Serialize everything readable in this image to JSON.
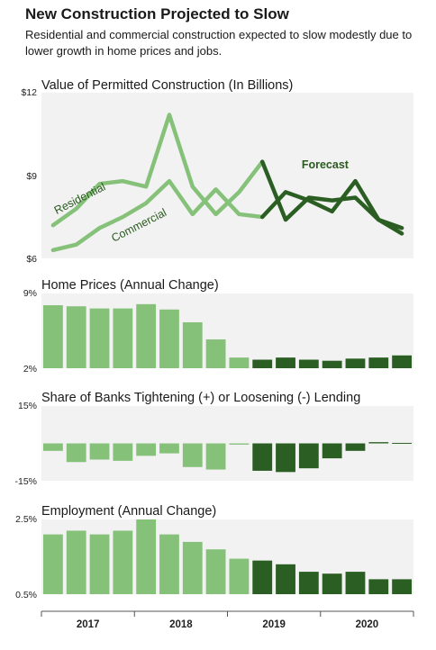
{
  "header": {
    "title": "New Construction Projected to Slow",
    "subtitle": "Residential and commercial construction expected to slow modestly due to lower growth in home prices and jobs."
  },
  "colors": {
    "historical": "#86c17a",
    "forecast": "#2b5e22",
    "panel_bg": "#f2f2f2",
    "axis": "#555555"
  },
  "x_axis": {
    "periods_per_year": 4,
    "years": [
      "2017",
      "2018",
      "2019",
      "2020"
    ],
    "forecast_start_index": 9
  },
  "chart_data": [
    {
      "id": "construction",
      "type": "line",
      "title": "Value of Permitted Construction (In Billions)",
      "ylim": [
        6,
        12
      ],
      "ytick_labels": [
        "$12",
        "$9",
        "$6"
      ],
      "ytick_values": [
        12,
        9,
        6
      ],
      "annotation": "Forecast",
      "series": [
        {
          "name": "Residential",
          "values": [
            7.2,
            7.8,
            8.7,
            8.8,
            8.6,
            11.2,
            8.6,
            7.6,
            8.4,
            9.5,
            7.4,
            8.2,
            8.1,
            8.2,
            7.4,
            7.1
          ]
        },
        {
          "name": "Commercial",
          "values": [
            6.3,
            6.5,
            7.1,
            7.5,
            8.0,
            8.8,
            7.6,
            8.5,
            7.6,
            7.5,
            8.4,
            8.1,
            7.7,
            8.8,
            7.4,
            6.9
          ]
        }
      ]
    },
    {
      "id": "home-prices",
      "type": "bar",
      "title": "Home Prices (Annual Change)",
      "ylim": [
        2,
        9
      ],
      "ytick_labels": [
        "9%",
        "2%"
      ],
      "ytick_values": [
        9,
        2
      ],
      "values": [
        7.9,
        7.8,
        7.6,
        7.6,
        8.0,
        7.5,
        6.3,
        4.7,
        3.0,
        2.8,
        3.0,
        2.8,
        2.7,
        2.9,
        3.0,
        3.2
      ]
    },
    {
      "id": "bank-lending",
      "type": "bar",
      "title": "Share of Banks Tightening  (+) or Loosening (-) Lending",
      "ylim": [
        -15,
        15
      ],
      "ytick_labels": [
        "15%",
        "-15%"
      ],
      "ytick_values": [
        15,
        -15
      ],
      "values": [
        -3,
        -7.5,
        -6.5,
        -7,
        -5,
        -4,
        -9.5,
        -10.5,
        -0.5,
        -11,
        -11.5,
        -10,
        -6,
        -3,
        0.5,
        0.2
      ]
    },
    {
      "id": "employment",
      "type": "bar",
      "title": "Employment (Annual Change)",
      "ylim": [
        0.5,
        2.5
      ],
      "ytick_labels": [
        "2.5%",
        "0.5%"
      ],
      "ytick_values": [
        2.5,
        0.5
      ],
      "values": [
        2.1,
        2.2,
        2.1,
        2.2,
        2.5,
        2.1,
        1.9,
        1.7,
        1.45,
        1.4,
        1.3,
        1.1,
        1.05,
        1.1,
        0.9,
        0.9
      ]
    }
  ]
}
